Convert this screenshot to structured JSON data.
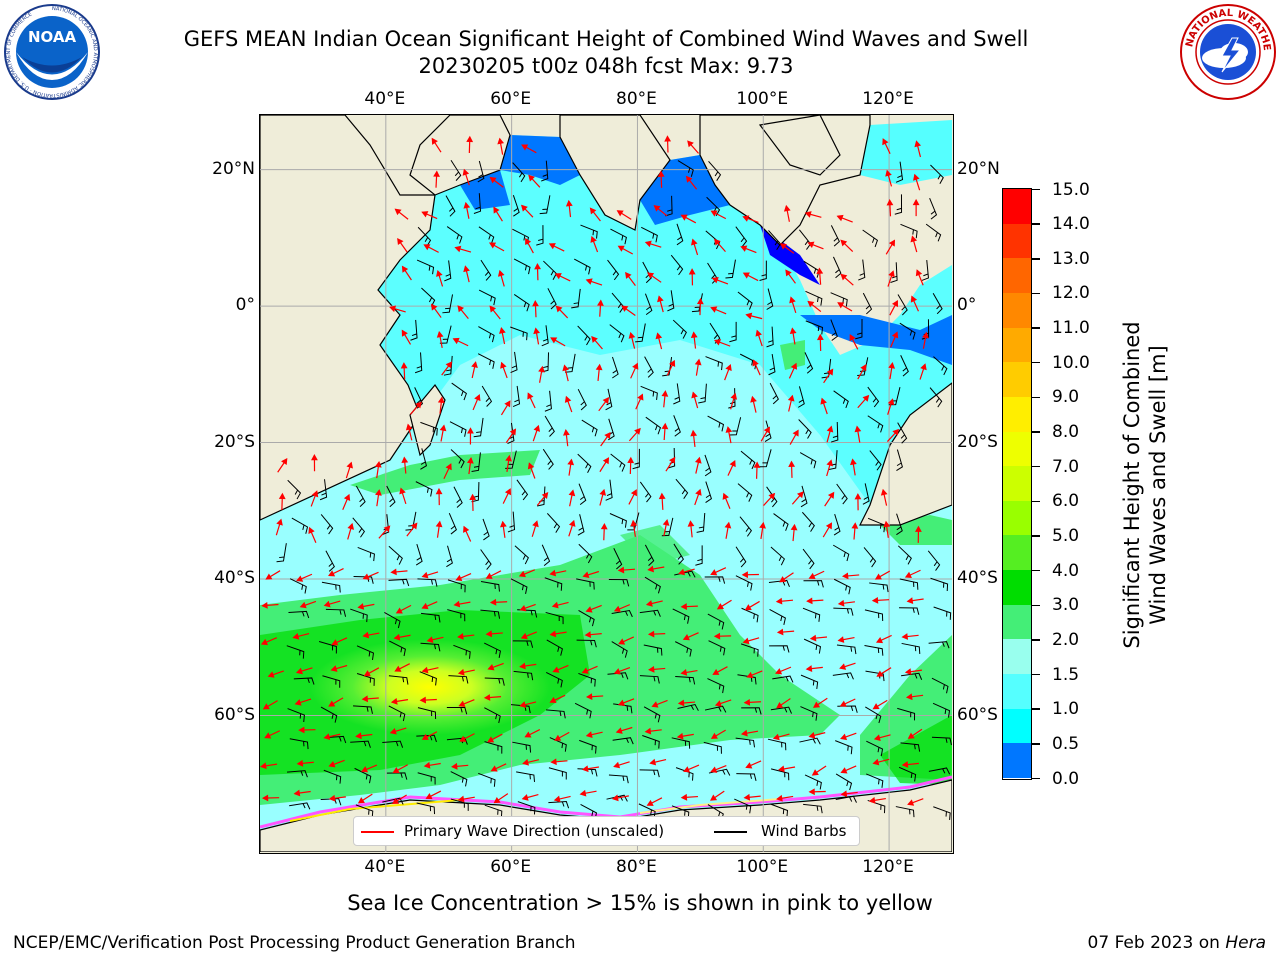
{
  "header": {
    "title_line1": "GEFS MEAN Indian Ocean Significant Height of Combined Wind Waves and Swell",
    "title_line2": "20230205 t00z 048h fcst   Max: 9.73"
  },
  "logos": {
    "left": {
      "name": "NOAA",
      "ring_text": "NATIONAL OCEANIC AND ATMOSPHERIC ADMINISTRATION · U.S. DEPARTMENT OF COMMERCE",
      "center_text": "NOAA"
    },
    "right": {
      "name": "National Weather Service",
      "ring_text": "NATIONAL WEATHER SERVICE"
    }
  },
  "map": {
    "projection": "lat-lon",
    "lon_ticks_top": [
      "40°E",
      "60°E",
      "80°E",
      "100°E",
      "120°E"
    ],
    "lon_ticks_bottom": [
      "40°E",
      "60°E",
      "80°E",
      "100°E",
      "120°E"
    ],
    "lat_ticks_left": [
      "20°N",
      "0°",
      "20°S",
      "40°S",
      "60°S"
    ],
    "lat_ticks_right": [
      "20°N",
      "0°",
      "20°S",
      "40°S",
      "60°S"
    ],
    "lon_values": [
      40,
      60,
      80,
      100,
      120
    ],
    "lat_values": [
      20,
      0,
      -20,
      -40,
      -60
    ],
    "lon_range": [
      20,
      130
    ],
    "lat_range": [
      28,
      -80
    ],
    "gridlines": true,
    "colors": {
      "land": "#efedd9",
      "grid": "#aaaaaa",
      "wave_direction": "#ff0000",
      "wind_barbs": "#000000"
    }
  },
  "legend": {
    "items": [
      {
        "label": "Primary Wave Direction (unscaled)",
        "color": "#ff0000"
      },
      {
        "label": "Wind Barbs",
        "color": "#000000"
      }
    ],
    "placement": "bottom-center"
  },
  "colorbar": {
    "label_line1": "Significant Height of Combined",
    "label_line2": "Wind Waves and Swell [m]",
    "ticks": [
      "15.0",
      "14.0",
      "13.0",
      "12.0",
      "11.0",
      "10.0",
      "9.0",
      "8.0",
      "7.0",
      "6.0",
      "5.0",
      "4.0",
      "3.0",
      "2.0",
      "1.5",
      "1.0",
      "0.5",
      "0.0"
    ],
    "levels_top_to_bottom": [
      15,
      14,
      13,
      12,
      11,
      10,
      9,
      8,
      7,
      6,
      5,
      4,
      3,
      2,
      1.5,
      1,
      0.5,
      0
    ],
    "colors_top_to_bottom": [
      "#ff0000",
      "#ff3300",
      "#ff6600",
      "#ff8800",
      "#ffaa00",
      "#ffcc00",
      "#ffee00",
      "#eeff00",
      "#ccff00",
      "#99ff00",
      "#55ee22",
      "#00dd00",
      "#44ee77",
      "#99ffee",
      "#55ffff",
      "#00ffff",
      "#0077ff",
      "#0000ff"
    ]
  },
  "subtitle": "Sea Ice Concentration > 15% is shown in pink to yellow",
  "footer": {
    "left": "NCEP/EMC/Verification Post Processing Product Generation Branch",
    "right_prefix": "07 Feb 2023 on ",
    "right_italic": "Hera"
  }
}
